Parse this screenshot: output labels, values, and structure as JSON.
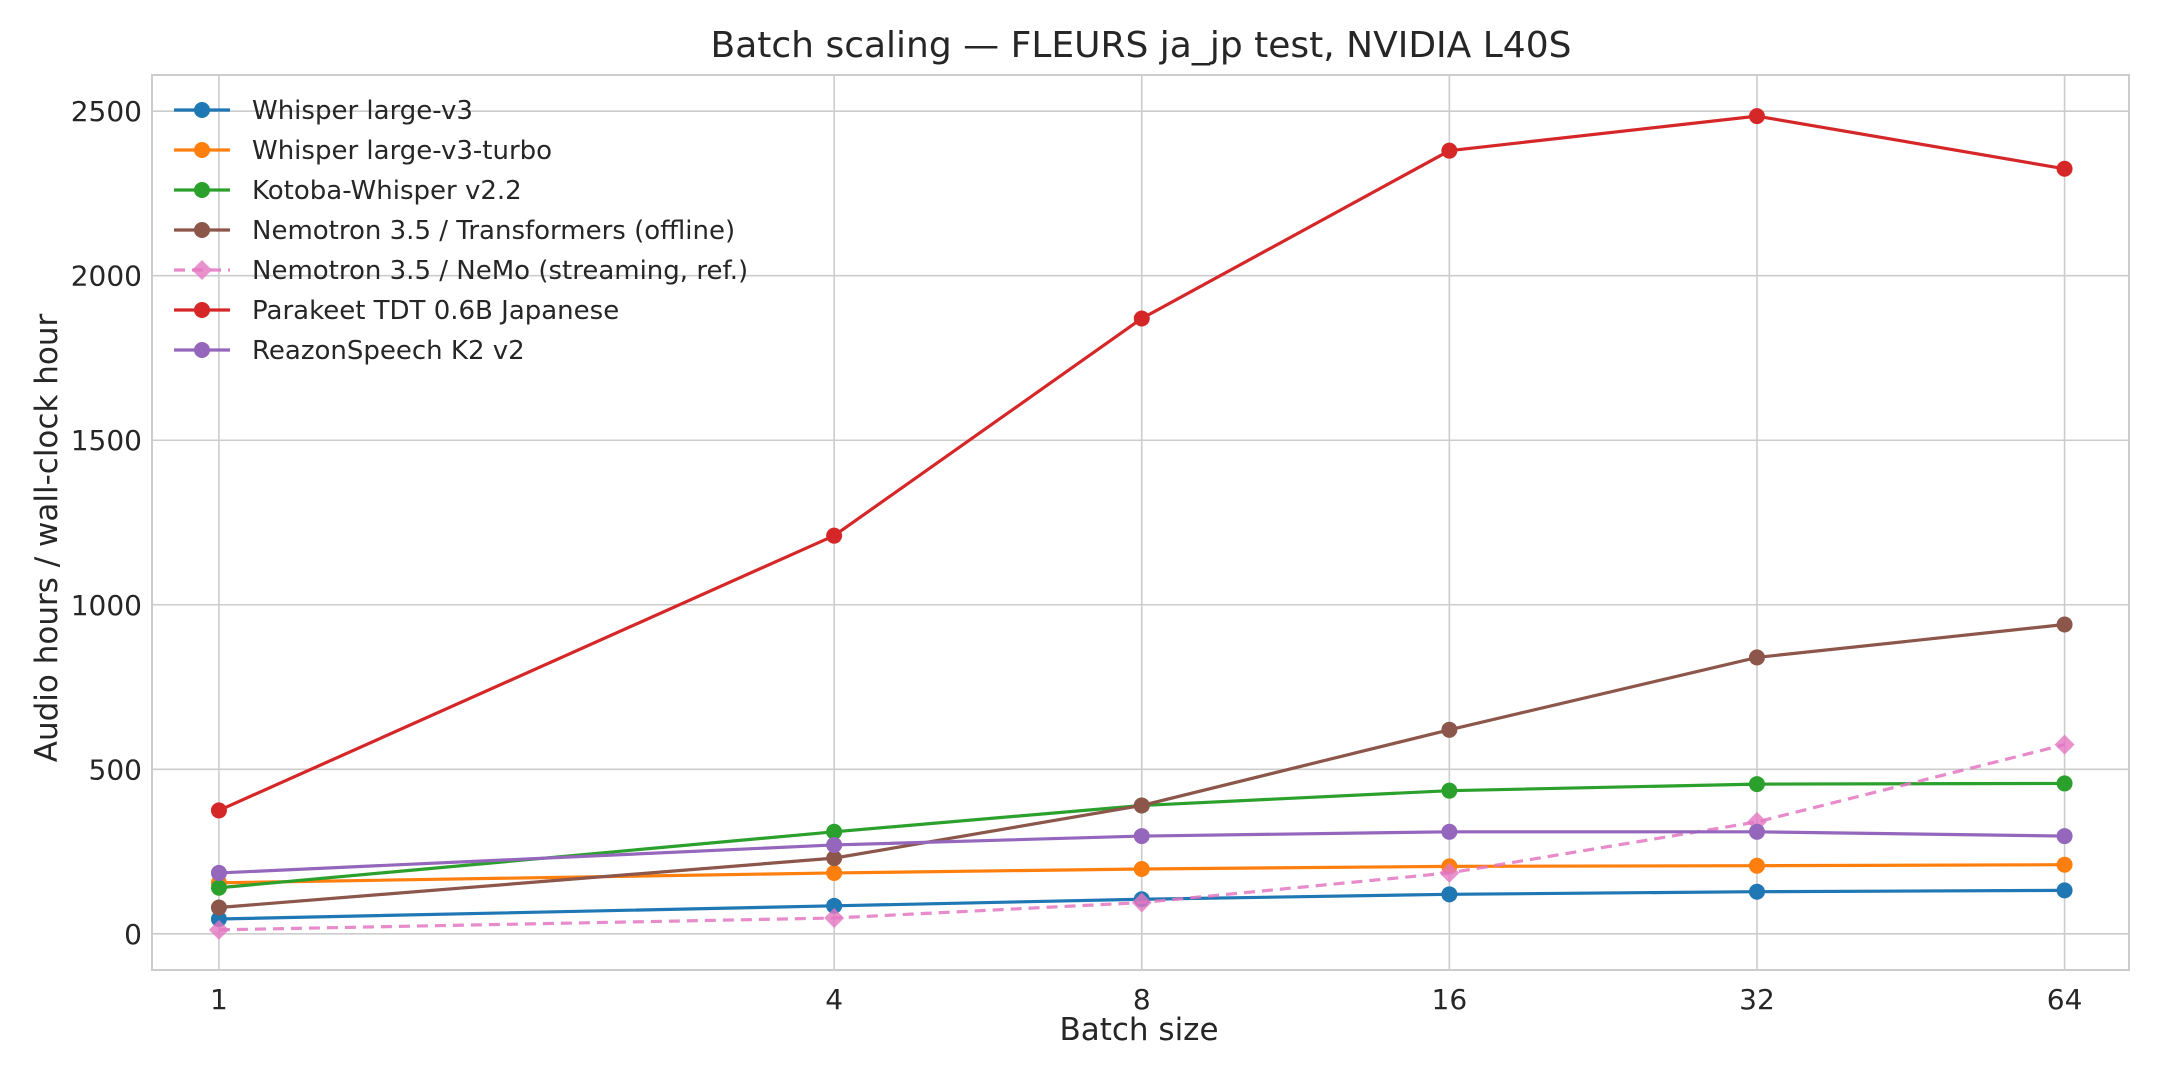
{
  "chart_data": {
    "type": "line",
    "title": "Batch scaling — FLEURS ja_jp test, NVIDIA L40S",
    "xlabel": "Batch size",
    "ylabel": "Audio hours / wall-clock hour",
    "x_scale": "log2",
    "x": [
      1,
      4,
      8,
      16,
      32,
      64
    ],
    "x_tick_labels": [
      "1",
      "4",
      "8",
      "16",
      "32",
      "64"
    ],
    "xlim": [
      0.86,
      74
    ],
    "ylim": [
      -110,
      2610
    ],
    "y_ticks": [
      0,
      500,
      1000,
      1500,
      2000,
      2500
    ],
    "y_tick_labels": [
      "0",
      "500",
      "1000",
      "1500",
      "2000",
      "2500"
    ],
    "grid": true,
    "legend_position": "top-left",
    "series": [
      {
        "name": "Whisper large-v3",
        "color": "#1f77b4",
        "marker": "circle",
        "dashed": false,
        "values": [
          45,
          85,
          105,
          120,
          128,
          132
        ]
      },
      {
        "name": "Whisper large-v3-turbo",
        "color": "#ff7f0e",
        "marker": "circle",
        "dashed": false,
        "values": [
          155,
          185,
          197,
          205,
          207,
          210
        ]
      },
      {
        "name": "Kotoba-Whisper v2.2",
        "color": "#2ca02c",
        "marker": "circle",
        "dashed": false,
        "values": [
          140,
          310,
          390,
          435,
          455,
          457
        ]
      },
      {
        "name": "Nemotron 3.5 / Transformers (offline)",
        "color": "#8c564b",
        "marker": "circle",
        "dashed": false,
        "values": [
          80,
          230,
          390,
          620,
          840,
          940
        ]
      },
      {
        "name": "Nemotron 3.5 / NeMo (streaming, ref.)",
        "color": "#e377c2",
        "marker": "diamond",
        "dashed": true,
        "values": [
          12,
          48,
          95,
          185,
          340,
          575
        ]
      },
      {
        "name": "Parakeet TDT 0.6B Japanese",
        "color": "#d62728",
        "marker": "circle",
        "dashed": false,
        "values": [
          375,
          1210,
          1870,
          2380,
          2485,
          2325
        ]
      },
      {
        "name": "ReazonSpeech K2 v2",
        "color": "#9467bd",
        "marker": "circle",
        "dashed": false,
        "values": [
          185,
          270,
          297,
          310,
          310,
          297
        ]
      }
    ]
  }
}
